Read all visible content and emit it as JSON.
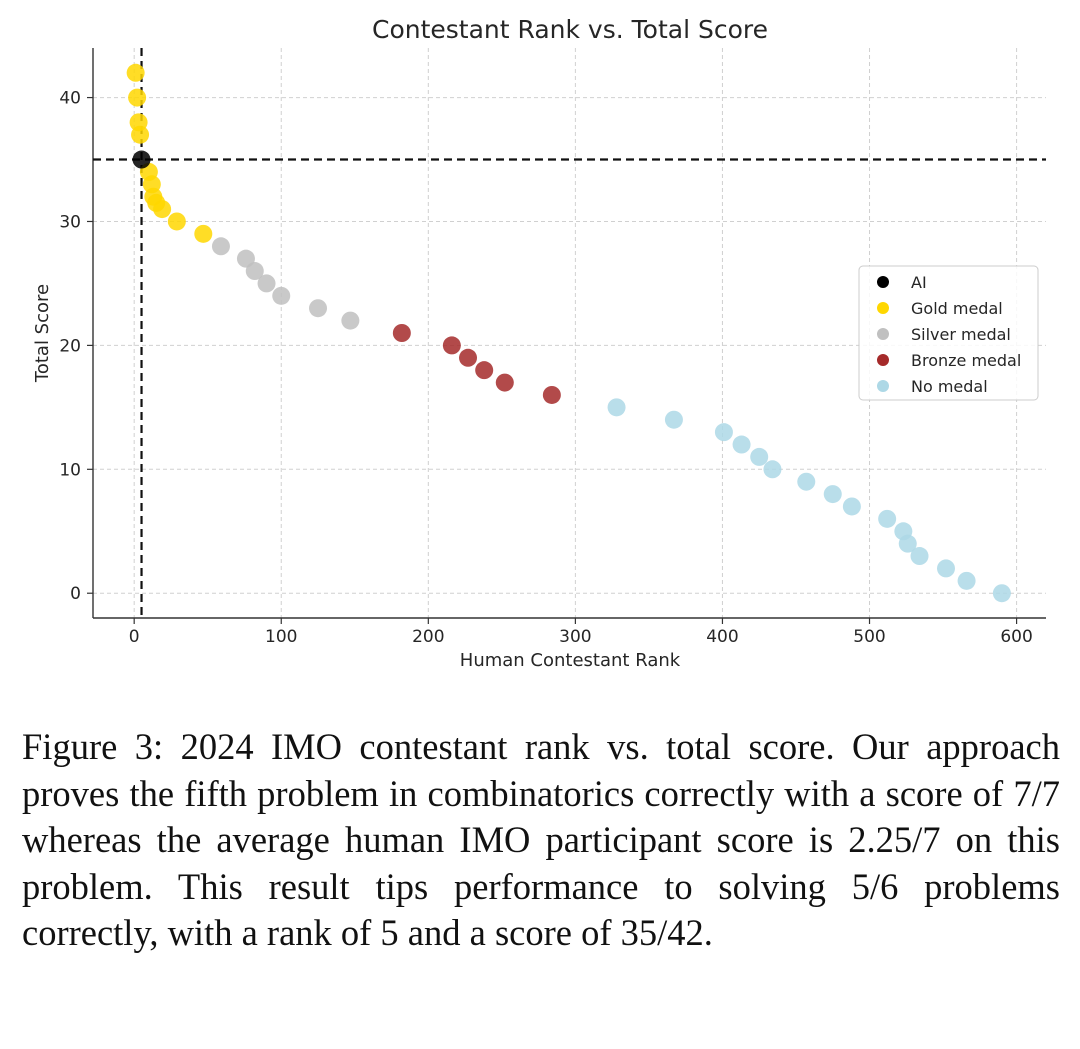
{
  "chart_data": {
    "type": "scatter",
    "title": "Contestant Rank vs. Total Score",
    "xlabel": "Human Contestant Rank",
    "ylabel": "Total Score",
    "xlim": [
      -28,
      620
    ],
    "ylim": [
      -2,
      44
    ],
    "xticks": [
      0,
      100,
      200,
      300,
      400,
      500,
      600
    ],
    "yticks": [
      0,
      10,
      20,
      30,
      40
    ],
    "grid": true,
    "legend_position": "center-right",
    "reference_lines": {
      "x": 5,
      "y": 35
    },
    "series": [
      {
        "name": "AI",
        "color": "#000000",
        "points": [
          [
            5,
            35
          ]
        ]
      },
      {
        "name": "Gold medal",
        "color": "#FFD700",
        "points": [
          [
            1,
            42
          ],
          [
            2,
            40
          ],
          [
            3,
            38
          ],
          [
            4,
            37
          ],
          [
            10,
            34
          ],
          [
            12,
            33
          ],
          [
            13,
            32
          ],
          [
            15,
            31.5
          ],
          [
            19,
            31
          ],
          [
            29,
            30
          ],
          [
            47,
            29
          ]
        ]
      },
      {
        "name": "Silver medal",
        "color": "#C0C0C0",
        "points": [
          [
            59,
            28
          ],
          [
            76,
            27
          ],
          [
            82,
            26
          ],
          [
            90,
            25
          ],
          [
            100,
            24
          ],
          [
            125,
            23
          ],
          [
            147,
            22
          ]
        ]
      },
      {
        "name": "Bronze medal",
        "color": "#A52A2A",
        "points": [
          [
            182,
            21
          ],
          [
            216,
            20
          ],
          [
            227,
            19
          ],
          [
            238,
            18
          ],
          [
            252,
            17
          ],
          [
            284,
            16
          ]
        ]
      },
      {
        "name": "No medal",
        "color": "#ADD8E6",
        "points": [
          [
            328,
            15
          ],
          [
            367,
            14
          ],
          [
            401,
            13
          ],
          [
            413,
            12
          ],
          [
            425,
            11
          ],
          [
            434,
            10
          ],
          [
            457,
            9
          ],
          [
            475,
            8
          ],
          [
            488,
            7
          ],
          [
            512,
            6
          ],
          [
            523,
            5
          ],
          [
            526,
            4
          ],
          [
            534,
            3
          ],
          [
            552,
            2
          ],
          [
            566,
            1
          ],
          [
            590,
            0
          ]
        ]
      }
    ]
  },
  "caption": "Figure 3: 2024 IMO contestant rank vs. total score. Our approach proves the fifth problem in combinatorics correctly with a score of 7/7 whereas the average human IMO participant score is 2.25/7 on this problem. This result tips performance to solving 5/6 problems correctly, with a rank of 5 and a score of 35/42."
}
